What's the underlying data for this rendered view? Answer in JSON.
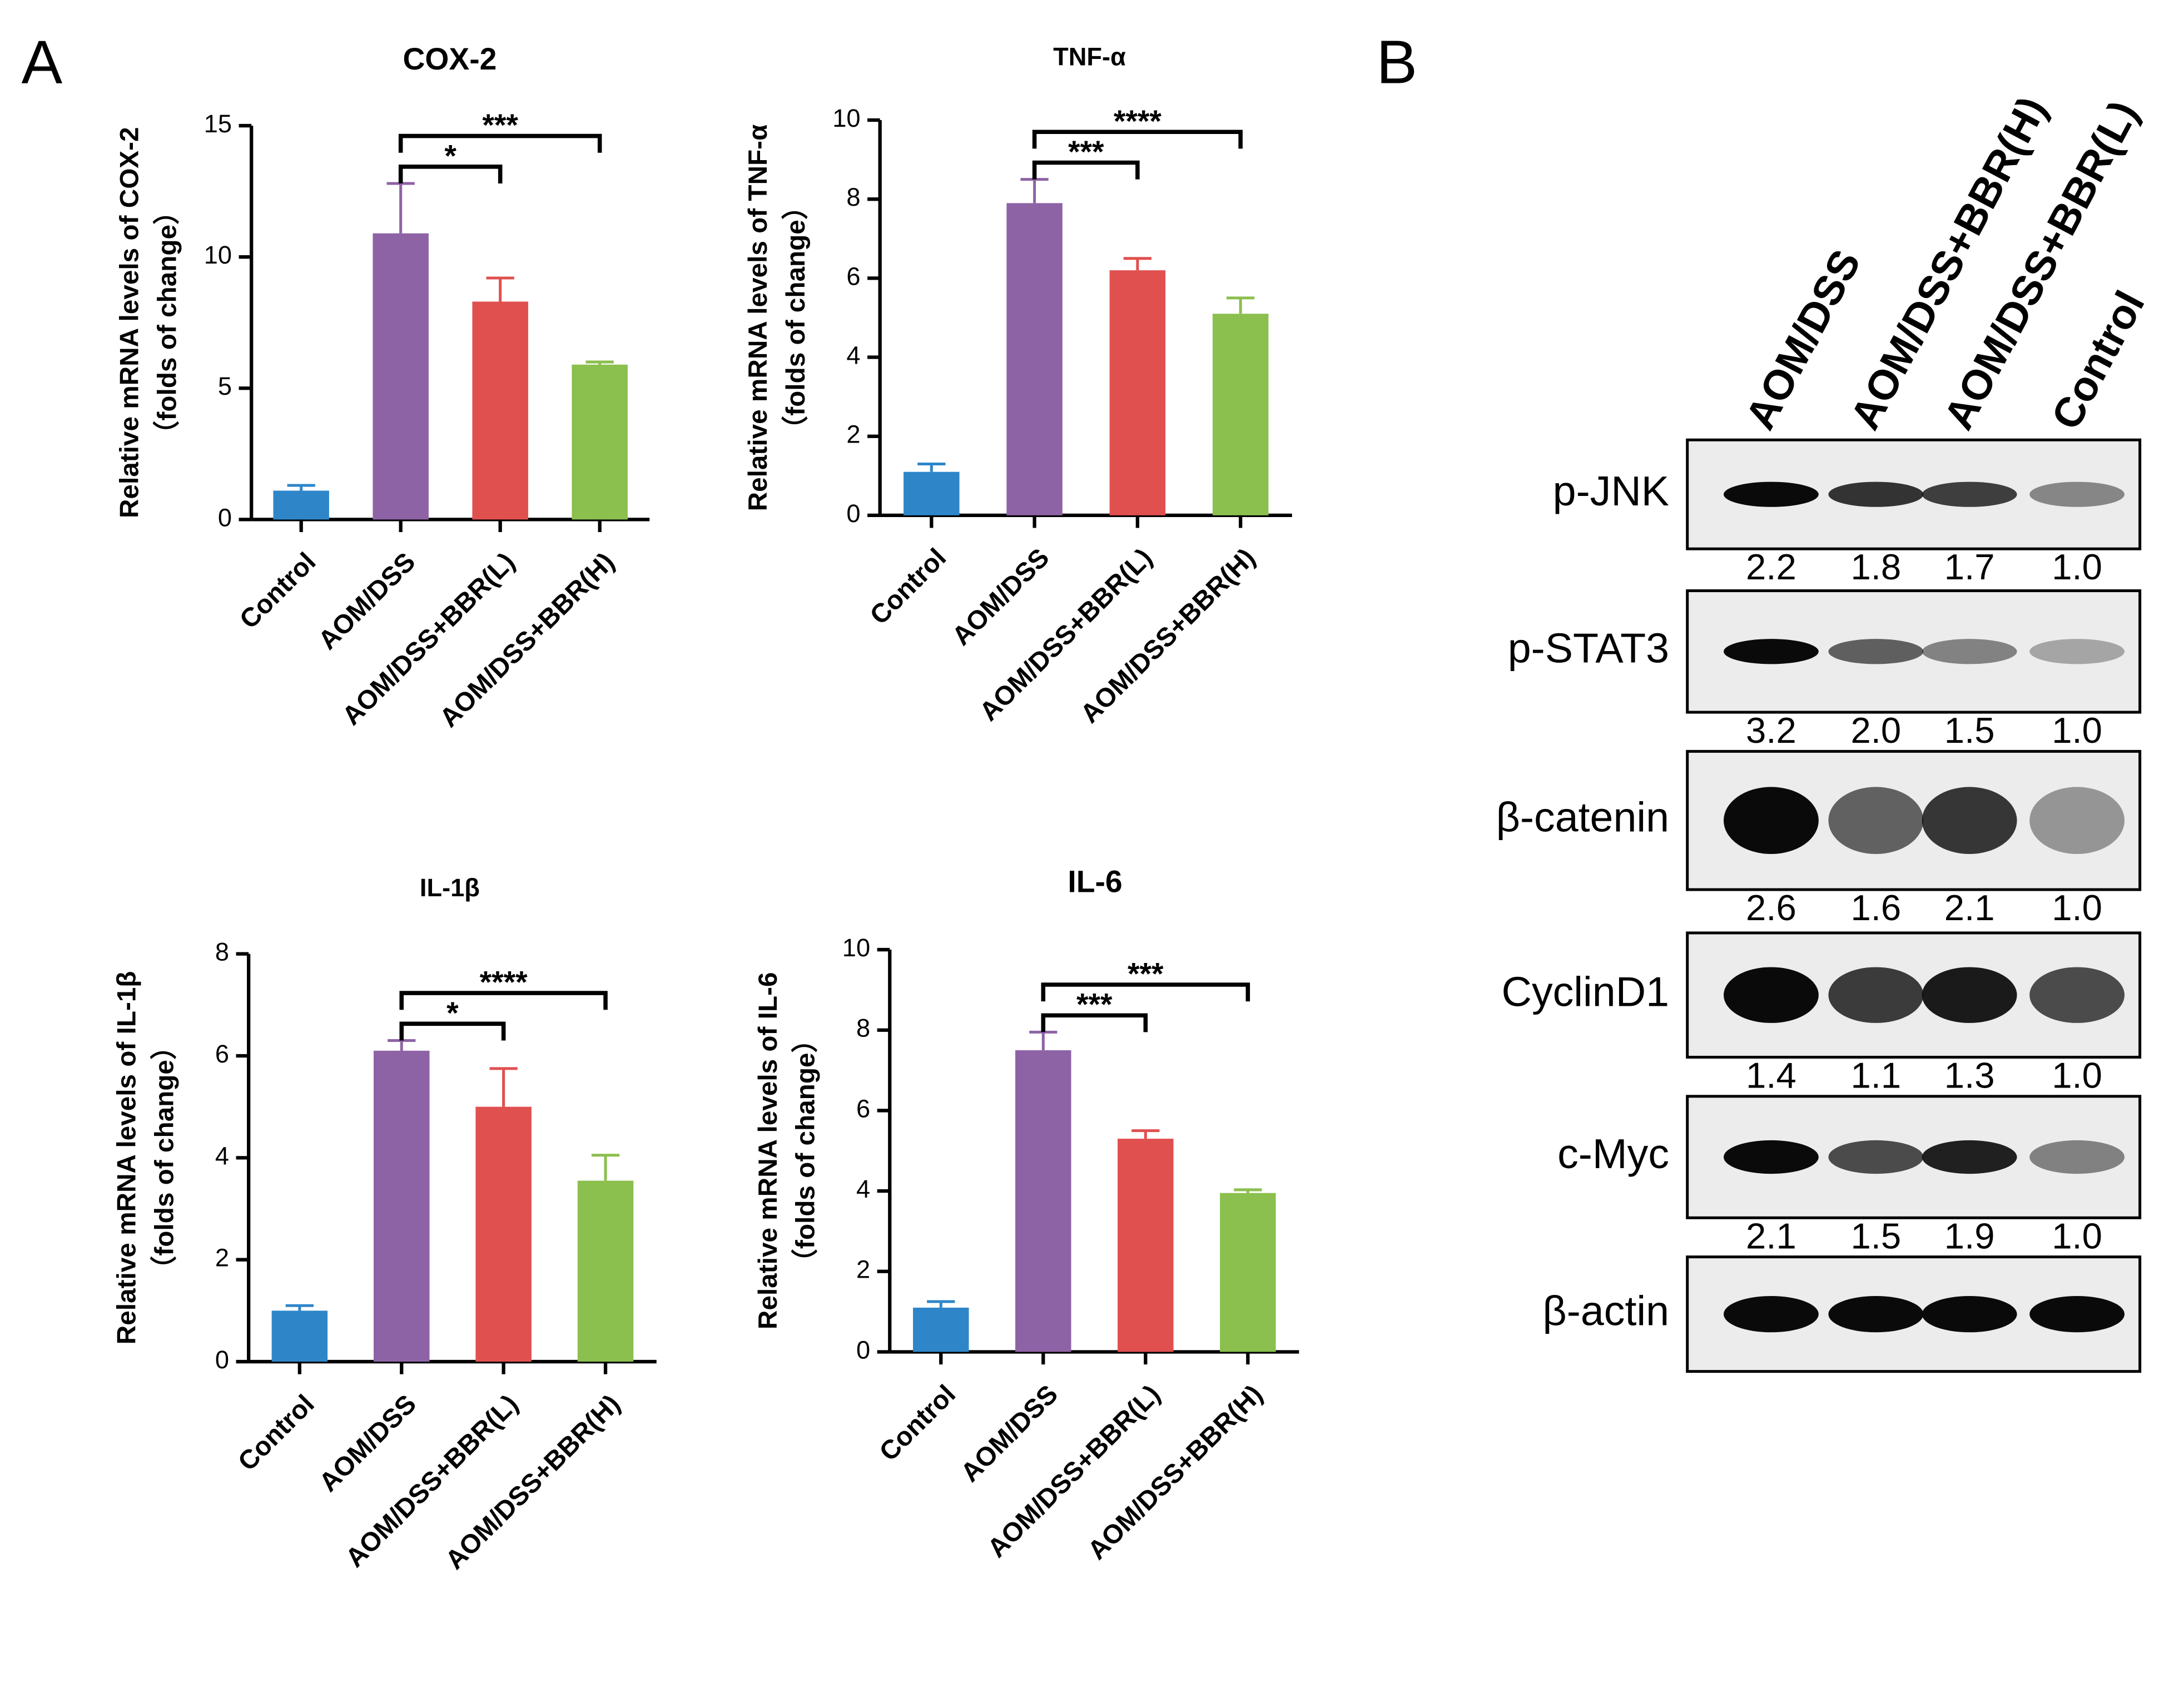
{
  "panel_labels": [
    "A",
    "B"
  ],
  "chart_data": [
    {
      "type": "bar",
      "title": "COX-2",
      "ylabel": [
        "Relative mRNA levels of COX-2",
        "（folds of change）"
      ],
      "categories": [
        "Control",
        "AOM/DSS",
        "AOM/DSS+BBR(L)",
        "AOM/DSS+BBR(H)"
      ],
      "values": [
        1.1,
        10.9,
        8.3,
        5.9
      ],
      "errors": [
        0.2,
        1.9,
        0.9,
        0.1
      ],
      "colors": [
        "#2e86c9",
        "#8e63a6",
        "#e0504f",
        "#8bbf4e"
      ],
      "ylim": [
        0,
        15
      ],
      "yticks": [
        0,
        5,
        10,
        15
      ],
      "annotations": [
        {
          "text": "*",
          "between": [
            1,
            2
          ]
        },
        {
          "text": "***",
          "between": [
            1,
            3
          ]
        }
      ]
    },
    {
      "type": "bar",
      "title": "TNF-α",
      "ylabel": [
        "Relative mRNA levels of TNF-α",
        "（folds of change）"
      ],
      "categories": [
        "Control",
        "AOM/DSS",
        "AOM/DSS+BBR(L)",
        "AOM/DSS+BBR(H)"
      ],
      "values": [
        1.1,
        7.9,
        6.2,
        5.1
      ],
      "errors": [
        0.2,
        0.6,
        0.3,
        0.4
      ],
      "colors": [
        "#2e86c9",
        "#8e63a6",
        "#e0504f",
        "#8bbf4e"
      ],
      "ylim": [
        0,
        10
      ],
      "yticks": [
        0,
        2,
        4,
        6,
        8,
        10
      ],
      "annotations": [
        {
          "text": "***",
          "between": [
            1,
            2
          ]
        },
        {
          "text": "****",
          "between": [
            1,
            3
          ]
        }
      ]
    },
    {
      "type": "bar",
      "title": "IL-1β",
      "ylabel": [
        "Relative mRNA levels of IL-1β",
        "（folds of change）"
      ],
      "categories": [
        "Control",
        "AOM/DSS",
        "AOM/DSS+BBR(L)",
        "AOM/DSS+BBR(H)"
      ],
      "values": [
        1.0,
        6.1,
        5.0,
        3.55
      ],
      "errors": [
        0.1,
        0.2,
        0.75,
        0.5
      ],
      "colors": [
        "#2e86c9",
        "#8e63a6",
        "#e0504f",
        "#8bbf4e"
      ],
      "ylim": [
        0,
        8
      ],
      "yticks": [
        0,
        2,
        4,
        6,
        8
      ],
      "annotations": [
        {
          "text": "*",
          "between": [
            1,
            2
          ]
        },
        {
          "text": "****",
          "between": [
            1,
            3
          ]
        }
      ]
    },
    {
      "type": "bar",
      "title": "IL-6",
      "ylabel": [
        "Relative mRNA levels of IL-6",
        "（folds of change）"
      ],
      "categories": [
        "Control",
        "AOM/DSS",
        "AOM/DSS+BBR(L)",
        "AOM/DSS+BBR(H)"
      ],
      "values": [
        1.1,
        7.5,
        5.3,
        3.95
      ],
      "errors": [
        0.15,
        0.45,
        0.2,
        0.08
      ],
      "colors": [
        "#2e86c9",
        "#8e63a6",
        "#e0504f",
        "#8bbf4e"
      ],
      "ylim": [
        0,
        10
      ],
      "yticks": [
        0,
        2,
        4,
        6,
        8,
        10
      ],
      "annotations": [
        {
          "text": "***",
          "between": [
            1,
            2
          ]
        },
        {
          "text": "***",
          "between": [
            1,
            3
          ]
        }
      ]
    }
  ],
  "blot": {
    "lanes": [
      "AOM/DSS",
      "AOM/DSS+BBR(H)",
      "AOM/DSS+BBR(L)",
      "Control"
    ],
    "rows": [
      {
        "label": "p-JNK",
        "values": [
          2.2,
          1.8,
          1.7,
          1.0
        ],
        "value_labels": [
          "2.2",
          "1.8",
          "1.7",
          "1.0"
        ]
      },
      {
        "label": "p-STAT3",
        "values": [
          3.2,
          2.0,
          1.5,
          1.0
        ],
        "value_labels": [
          "3.2",
          "2.0",
          "1.5",
          "1.0"
        ]
      },
      {
        "label": "β-catenin",
        "values": [
          2.6,
          1.6,
          2.1,
          1.0
        ],
        "value_labels": [
          "2.6",
          "1.6",
          "2.1",
          "1.0"
        ]
      },
      {
        "label": "CyclinD1",
        "values": [
          1.4,
          1.1,
          1.3,
          1.0
        ],
        "value_labels": [
          "1.4",
          "1.1",
          "1.3",
          "1.0"
        ]
      },
      {
        "label": "c-Myc",
        "values": [
          2.1,
          1.5,
          1.9,
          1.0
        ],
        "value_labels": [
          "2.1",
          "1.5",
          "1.9",
          "1.0"
        ]
      },
      {
        "label": "β-actin"
      }
    ]
  }
}
